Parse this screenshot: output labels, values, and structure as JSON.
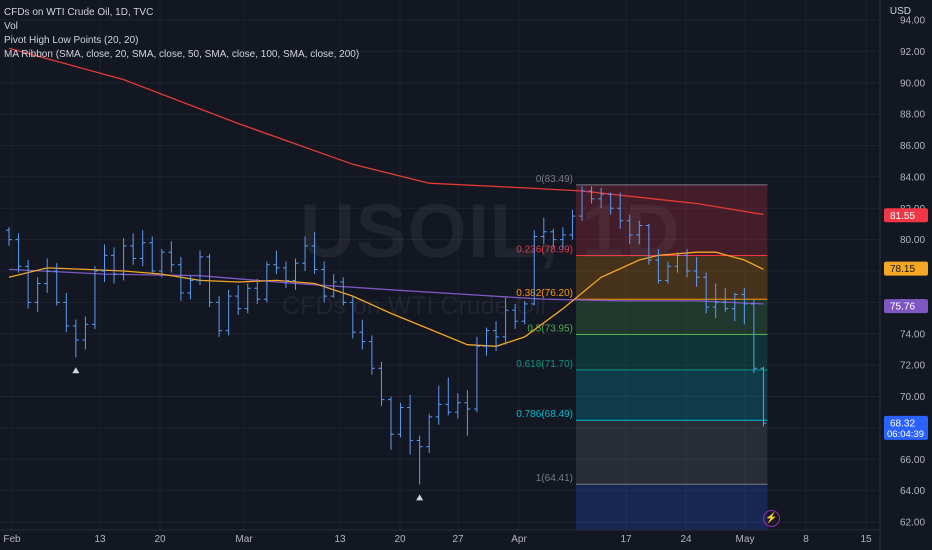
{
  "legend": {
    "title": "CFDs on WTI Crude Oil, 1D, TVC",
    "vol": "Vol",
    "pivot": "Pivot High Low Points (20, 20)",
    "ma_ribbon": "MA Ribbon (SMA, close, 20, SMA, close, 50, SMA, close, 100, SMA, close, 200)"
  },
  "watermark": {
    "symbol": "USOIL, 1D",
    "description": "CFDs on WTI Crude Oil"
  },
  "currency": "USD",
  "bolt_icon": "lightning-bolt-icon",
  "chart_data": {
    "type": "ohlc",
    "interval": "1D",
    "y_range": [
      61.5,
      95
    ],
    "y_ticks": [
      "62.00",
      "64.00",
      "66.00",
      "68.00",
      "70.00",
      "72.00",
      "74.00",
      "76.00",
      "78.00",
      "80.00",
      "82.00",
      "84.00",
      "86.00",
      "88.00",
      "90.00",
      "92.00",
      "94.00"
    ],
    "x_ticks": [
      "Feb",
      "13",
      "20",
      "Mar",
      "13",
      "20",
      "27",
      "Apr",
      "17",
      "24",
      "May",
      "8",
      "15"
    ],
    "colors": {
      "bars": "#5b9cf6",
      "ma_200": "#e53935",
      "ma_50": "#7e57c2",
      "ma_20": "#f5a623",
      "pivot_marker": "#d1d4dc",
      "grid": "#1e222d"
    },
    "ohlc": [
      [
        80.6,
        80.8,
        79.6,
        80.0
      ],
      [
        80.0,
        80.4,
        77.9,
        78.3
      ],
      [
        78.3,
        78.7,
        75.6,
        76.0
      ],
      [
        76.0,
        77.6,
        75.4,
        77.2
      ],
      [
        77.2,
        78.8,
        76.6,
        78.0
      ],
      [
        78.0,
        78.5,
        75.8,
        76.0
      ],
      [
        76.0,
        76.6,
        74.1,
        74.5
      ],
      [
        74.5,
        74.9,
        72.5,
        73.6
      ],
      [
        73.6,
        75.1,
        73.0,
        74.6
      ],
      [
        74.6,
        78.3,
        74.3,
        78.0
      ],
      [
        78.0,
        79.7,
        77.3,
        79.0
      ],
      [
        79.0,
        79.5,
        77.2,
        77.8
      ],
      [
        77.8,
        80.1,
        77.4,
        79.6
      ],
      [
        79.6,
        80.4,
        78.4,
        78.8
      ],
      [
        78.8,
        80.6,
        78.3,
        79.8
      ],
      [
        79.8,
        80.2,
        77.9,
        78.0
      ],
      [
        78.0,
        79.4,
        77.6,
        79.2
      ],
      [
        79.2,
        79.9,
        77.9,
        78.4
      ],
      [
        78.4,
        78.9,
        76.1,
        76.6
      ],
      [
        76.6,
        77.7,
        76.2,
        77.4
      ],
      [
        77.4,
        79.3,
        77.1,
        78.9
      ],
      [
        78.9,
        79.1,
        75.7,
        76.0
      ],
      [
        76.0,
        76.4,
        73.8,
        74.2
      ],
      [
        74.2,
        76.8,
        73.9,
        76.4
      ],
      [
        76.4,
        77.1,
        75.2,
        75.6
      ],
      [
        75.6,
        77.2,
        75.3,
        76.9
      ],
      [
        76.9,
        77.5,
        75.9,
        76.2
      ],
      [
        76.2,
        78.6,
        76.0,
        78.4
      ],
      [
        78.4,
        79.3,
        77.8,
        78.2
      ],
      [
        78.2,
        78.6,
        76.9,
        77.4
      ],
      [
        77.4,
        78.8,
        76.8,
        78.5
      ],
      [
        78.5,
        80.2,
        78.0,
        79.6
      ],
      [
        79.6,
        80.5,
        77.8,
        78.1
      ],
      [
        78.1,
        78.6,
        76.0,
        76.4
      ],
      [
        76.4,
        77.8,
        76.3,
        77.3
      ],
      [
        77.3,
        77.6,
        75.8,
        76.0
      ],
      [
        76.0,
        76.4,
        73.7,
        74.1
      ],
      [
        74.1,
        74.9,
        73.0,
        73.5
      ],
      [
        73.5,
        73.9,
        71.4,
        71.8
      ],
      [
        71.8,
        72.2,
        69.4,
        69.8
      ],
      [
        69.8,
        70.0,
        66.6,
        67.6
      ],
      [
        67.6,
        69.6,
        67.4,
        69.3
      ],
      [
        69.3,
        70.1,
        66.3,
        67.2
      ],
      [
        67.2,
        67.5,
        64.4,
        66.8
      ],
      [
        66.8,
        68.9,
        66.4,
        68.7
      ],
      [
        68.7,
        70.7,
        68.2,
        69.5
      ],
      [
        69.5,
        71.2,
        68.8,
        69.0
      ],
      [
        69.0,
        70.2,
        68.6,
        69.6
      ],
      [
        69.6,
        70.4,
        67.5,
        69.2
      ],
      [
        69.2,
        73.8,
        69.0,
        73.2
      ],
      [
        73.2,
        74.4,
        72.6,
        74.2
      ],
      [
        74.2,
        74.8,
        72.9,
        73.8
      ],
      [
        73.8,
        76.3,
        73.3,
        75.5
      ],
      [
        75.5,
        75.9,
        74.3,
        74.8
      ],
      [
        74.8,
        76.1,
        74.6,
        75.9
      ],
      [
        75.9,
        80.6,
        75.8,
        80.2
      ],
      [
        80.2,
        81.4,
        79.7,
        80.5
      ],
      [
        80.5,
        80.7,
        79.5,
        80.0
      ],
      [
        80.0,
        80.8,
        79.4,
        80.3
      ],
      [
        80.3,
        81.9,
        80.0,
        81.5
      ],
      [
        81.5,
        83.4,
        81.2,
        83.1
      ],
      [
        83.1,
        83.4,
        82.3,
        82.6
      ],
      [
        82.6,
        83.3,
        82.0,
        82.9
      ],
      [
        82.9,
        83.0,
        81.6,
        82.0
      ],
      [
        82.0,
        83.0,
        80.7,
        81.2
      ],
      [
        81.2,
        81.6,
        79.7,
        80.3
      ],
      [
        80.3,
        81.2,
        79.7,
        80.9
      ],
      [
        80.9,
        81.0,
        78.4,
        78.7
      ],
      [
        78.7,
        79.4,
        77.2,
        77.4
      ],
      [
        77.4,
        78.6,
        77.2,
        78.3
      ],
      [
        78.3,
        79.2,
        77.9,
        79.0
      ],
      [
        79.0,
        79.4,
        77.6,
        78.0
      ],
      [
        78.0,
        78.9,
        77.0,
        77.6
      ],
      [
        77.6,
        77.9,
        75.3,
        75.7
      ],
      [
        75.7,
        77.2,
        75.0,
        76.0
      ],
      [
        76.0,
        76.9,
        75.4,
        75.6
      ],
      [
        75.6,
        76.6,
        74.8,
        76.5
      ],
      [
        76.5,
        76.9,
        74.6,
        75.9
      ],
      [
        75.9,
        76.2,
        71.5,
        71.8
      ],
      [
        71.8,
        71.9,
        68.1,
        68.3
      ]
    ],
    "ma_200": [
      [
        0,
        92.2
      ],
      [
        12,
        90.2
      ],
      [
        24,
        87.4
      ],
      [
        36,
        84.8
      ],
      [
        44,
        83.6
      ],
      [
        54,
        83.3
      ],
      [
        60,
        83.1
      ],
      [
        66,
        82.7
      ],
      [
        72,
        82.3
      ],
      [
        79,
        81.6
      ]
    ],
    "ma_50": [
      [
        0,
        78.1
      ],
      [
        10,
        77.8
      ],
      [
        20,
        77.7
      ],
      [
        30,
        77.2
      ],
      [
        40,
        76.8
      ],
      [
        48,
        76.5
      ],
      [
        56,
        76.2
      ],
      [
        64,
        76.1
      ],
      [
        72,
        76.1
      ],
      [
        79,
        75.9
      ]
    ],
    "ma_20": [
      [
        0,
        77.6
      ],
      [
        4,
        78.2
      ],
      [
        8,
        78.1
      ],
      [
        12,
        78.0
      ],
      [
        16,
        77.8
      ],
      [
        20,
        77.4
      ],
      [
        24,
        77.3
      ],
      [
        28,
        77.4
      ],
      [
        32,
        77.2
      ],
      [
        36,
        76.4
      ],
      [
        40,
        75.3
      ],
      [
        44,
        74.3
      ],
      [
        48,
        73.3
      ],
      [
        51,
        73.2
      ],
      [
        54,
        73.8
      ],
      [
        58,
        75.6
      ],
      [
        62,
        77.6
      ],
      [
        66,
        78.7
      ],
      [
        68,
        79.0
      ],
      [
        72,
        79.2
      ],
      [
        74,
        79.2
      ],
      [
        77,
        78.7
      ],
      [
        79,
        78.1
      ]
    ],
    "pivots": [
      {
        "index": 7,
        "type": "low",
        "value": 72.5
      },
      {
        "index": 43,
        "type": "low",
        "value": 64.4
      }
    ],
    "fibonacci": {
      "start_index": 60,
      "end_index": 79,
      "levels": [
        {
          "label": "0(83.49)",
          "ratio": 0,
          "price": 83.49,
          "color": "#787b86"
        },
        {
          "label": "0.236(78.99)",
          "ratio": 0.236,
          "price": 78.99,
          "color": "#f23645"
        },
        {
          "label": "0.382(76.20)",
          "ratio": 0.382,
          "price": 76.2,
          "color": "#ff9800"
        },
        {
          "label": "0.5(73.95)",
          "ratio": 0.5,
          "price": 73.95,
          "color": "#4caf50"
        },
        {
          "label": "0.618(71.70)",
          "ratio": 0.618,
          "price": 71.7,
          "color": "#089981"
        },
        {
          "label": "0.786(68.49)",
          "ratio": 0.786,
          "price": 68.49,
          "color": "#00bcd4"
        },
        {
          "label": "1(64.41)",
          "ratio": 1,
          "price": 64.41,
          "color": "#787b86"
        },
        {
          "label": "",
          "ratio": 1.1,
          "price": 61.5,
          "color": "#2962ff"
        }
      ]
    },
    "price_labels": [
      {
        "text": "81.55",
        "value": 81.55,
        "bg": "#f23645",
        "fg": "#ffffff",
        "sub": ""
      },
      {
        "text": "78.15",
        "value": 78.15,
        "bg": "#f5a623",
        "fg": "#131722",
        "sub": ""
      },
      {
        "text": "75.76",
        "value": 75.76,
        "bg": "#7e57c2",
        "fg": "#ffffff",
        "sub": ""
      },
      {
        "text": "68.32",
        "value": 68.32,
        "bg": "#2962ff",
        "fg": "#ffffff",
        "sub": "06:04:39"
      }
    ]
  }
}
